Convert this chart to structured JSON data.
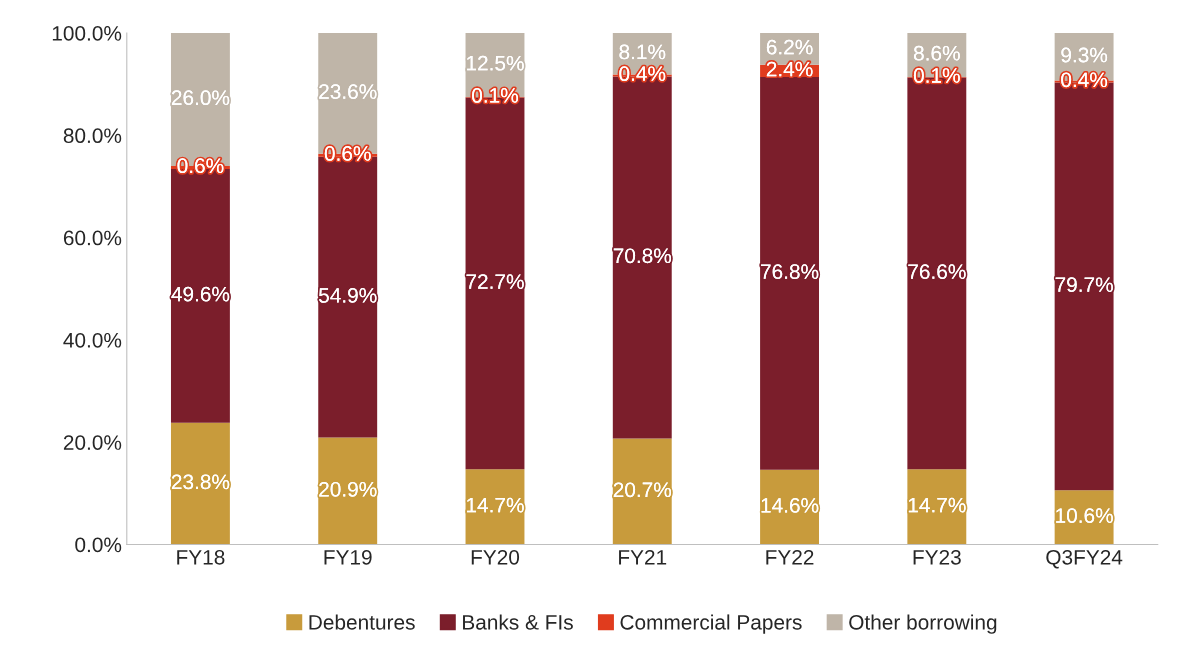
{
  "chart_data": {
    "type": "bar",
    "stacked": true,
    "categories": [
      "FY18",
      "FY19",
      "FY20",
      "FY21",
      "FY22",
      "FY23",
      "Q3FY24"
    ],
    "series": [
      {
        "name": "Debentures",
        "color": "#c89b3c",
        "values": [
          23.8,
          20.9,
          14.7,
          20.7,
          14.6,
          14.7,
          10.6
        ],
        "value_labels": [
          "23.8%",
          "20.9%",
          "14.7%",
          "20.7%",
          "14.6%",
          "14.7%",
          "10.6%"
        ]
      },
      {
        "name": "Banks & FIs",
        "color": "#7b1e2b",
        "values": [
          49.6,
          54.9,
          72.7,
          70.8,
          76.8,
          76.6,
          79.7
        ],
        "value_labels": [
          "49.6%",
          "54.9%",
          "72.7%",
          "70.8%",
          "76.8%",
          "76.6%",
          "79.7%"
        ]
      },
      {
        "name": "Commercial Papers",
        "color": "#e03c1e",
        "values": [
          0.6,
          0.6,
          0.1,
          0.4,
          2.4,
          0.1,
          0.4
        ],
        "value_labels": [
          "0.6%",
          "0.6%",
          "0.1%",
          "0.4%",
          "2.4%",
          "0.1%",
          "0.4%"
        ]
      },
      {
        "name": "Other borrowing",
        "color": "#bfb5a8",
        "values": [
          26.0,
          23.6,
          12.5,
          8.1,
          6.2,
          8.6,
          9.3
        ],
        "value_labels": [
          "26.0%",
          "23.6%",
          "12.5%",
          "8.1%",
          "6.2%",
          "8.6%",
          "9.3%"
        ]
      }
    ],
    "ylim": [
      0,
      100
    ],
    "yticks": [
      {
        "value": 0,
        "label": "0.0%"
      },
      {
        "value": 20,
        "label": "20.0%"
      },
      {
        "value": 40,
        "label": "40.0%"
      },
      {
        "value": 60,
        "label": "60.0%"
      },
      {
        "value": 80,
        "label": "80.0%"
      },
      {
        "value": 100,
        "label": "100.0%"
      }
    ],
    "grid": false,
    "legend": "bottom"
  }
}
